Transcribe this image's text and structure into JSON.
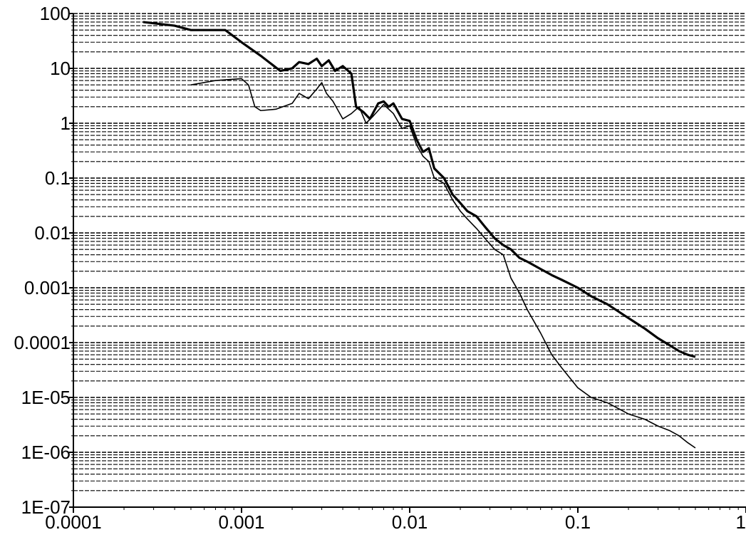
{
  "chart_data": {
    "type": "line",
    "title": "",
    "xlabel": "",
    "ylabel": "",
    "x_scale": "log",
    "y_scale": "log",
    "xlim": [
      0.0001,
      1
    ],
    "ylim": [
      1e-07,
      100
    ],
    "grid": "horizontal dashed at minor log ticks",
    "legend": "none",
    "y_tick_labels": [
      "100",
      "10",
      "1",
      "0.1",
      "0.01",
      "0.001",
      "0.0001",
      "1E-05",
      "1E-06",
      "1E-07"
    ],
    "x_tick_labels": [
      "0.0001",
      "0.001",
      "0.01",
      "0.1",
      "1"
    ],
    "series": [
      {
        "style": "thick",
        "color": "#000000",
        "points": [
          [
            0.00026,
            70
          ],
          [
            0.0004,
            60
          ],
          [
            0.0005,
            50
          ],
          [
            0.0008,
            50
          ],
          [
            0.001,
            30
          ],
          [
            0.0013,
            17
          ],
          [
            0.0017,
            9
          ],
          [
            0.002,
            10
          ],
          [
            0.0022,
            13
          ],
          [
            0.0025,
            12
          ],
          [
            0.0028,
            15
          ],
          [
            0.003,
            11
          ],
          [
            0.0033,
            14
          ],
          [
            0.0036,
            9
          ],
          [
            0.004,
            11
          ],
          [
            0.0045,
            8
          ],
          [
            0.0048,
            2.0
          ],
          [
            0.0053,
            1.6
          ],
          [
            0.0058,
            1.2
          ],
          [
            0.0065,
            2.3
          ],
          [
            0.007,
            2.5
          ],
          [
            0.0075,
            2.0
          ],
          [
            0.008,
            2.3
          ],
          [
            0.009,
            1.2
          ],
          [
            0.01,
            1.1
          ],
          [
            0.011,
            0.5
          ],
          [
            0.012,
            0.3
          ],
          [
            0.013,
            0.35
          ],
          [
            0.014,
            0.15
          ],
          [
            0.016,
            0.1
          ],
          [
            0.018,
            0.05
          ],
          [
            0.02,
            0.035
          ],
          [
            0.022,
            0.025
          ],
          [
            0.025,
            0.02
          ],
          [
            0.028,
            0.013
          ],
          [
            0.032,
            0.008
          ],
          [
            0.036,
            0.006
          ],
          [
            0.04,
            0.005
          ],
          [
            0.045,
            0.0035
          ],
          [
            0.05,
            0.003
          ],
          [
            0.06,
            0.0022
          ],
          [
            0.07,
            0.0017
          ],
          [
            0.08,
            0.0014
          ],
          [
            0.1,
            0.001
          ],
          [
            0.12,
            0.0007
          ],
          [
            0.15,
            0.0005
          ],
          [
            0.2,
            0.00028
          ],
          [
            0.25,
            0.00018
          ],
          [
            0.3,
            0.00012
          ],
          [
            0.35,
            9e-05
          ],
          [
            0.4,
            7e-05
          ],
          [
            0.45,
            6e-05
          ],
          [
            0.5,
            5.5e-05
          ]
        ]
      },
      {
        "style": "thin",
        "color": "#000000",
        "points": [
          [
            0.0005,
            5
          ],
          [
            0.0007,
            6
          ],
          [
            0.001,
            6.5
          ],
          [
            0.0011,
            5
          ],
          [
            0.0012,
            2.0
          ],
          [
            0.0013,
            1.7
          ],
          [
            0.0016,
            1.8
          ],
          [
            0.002,
            2.3
          ],
          [
            0.0022,
            3.5
          ],
          [
            0.0025,
            2.8
          ],
          [
            0.0028,
            4.2
          ],
          [
            0.003,
            5.5
          ],
          [
            0.0032,
            3.5
          ],
          [
            0.0035,
            2.5
          ],
          [
            0.004,
            1.2
          ],
          [
            0.0045,
            1.5
          ],
          [
            0.005,
            2.0
          ],
          [
            0.0055,
            1.0
          ],
          [
            0.006,
            1.3
          ],
          [
            0.007,
            2.2
          ],
          [
            0.008,
            1.5
          ],
          [
            0.009,
            0.8
          ],
          [
            0.01,
            0.9
          ],
          [
            0.011,
            0.4
          ],
          [
            0.012,
            0.25
          ],
          [
            0.013,
            0.2
          ],
          [
            0.014,
            0.1
          ],
          [
            0.016,
            0.08
          ],
          [
            0.018,
            0.04
          ],
          [
            0.02,
            0.025
          ],
          [
            0.022,
            0.018
          ],
          [
            0.025,
            0.012
          ],
          [
            0.028,
            0.008
          ],
          [
            0.032,
            0.005
          ],
          [
            0.036,
            0.004
          ],
          [
            0.04,
            0.0015
          ],
          [
            0.045,
            0.0008
          ],
          [
            0.05,
            0.0004
          ],
          [
            0.06,
            0.00015
          ],
          [
            0.07,
            6e-05
          ],
          [
            0.08,
            3.5e-05
          ],
          [
            0.1,
            1.5e-05
          ],
          [
            0.12,
            1e-05
          ],
          [
            0.15,
            8e-06
          ],
          [
            0.2,
            5e-06
          ],
          [
            0.25,
            4e-06
          ],
          [
            0.3,
            3e-06
          ],
          [
            0.35,
            2.5e-06
          ],
          [
            0.4,
            2e-06
          ],
          [
            0.45,
            1.5e-06
          ],
          [
            0.5,
            1.2e-06
          ]
        ]
      }
    ]
  }
}
